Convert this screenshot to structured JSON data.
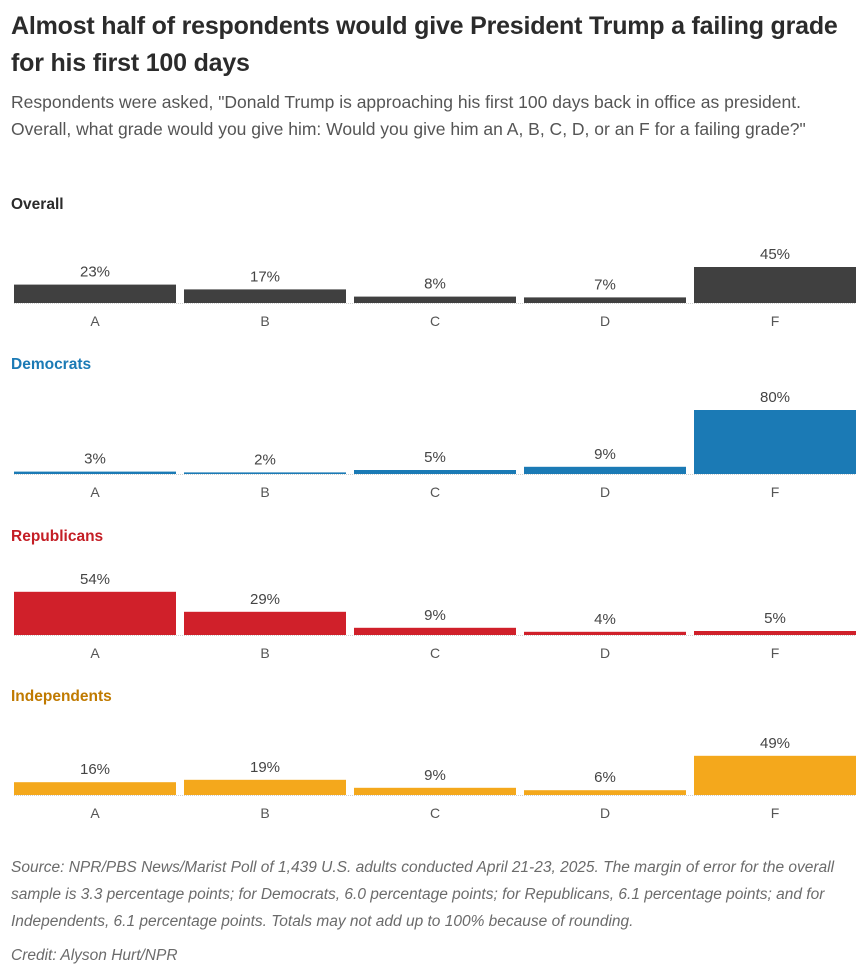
{
  "title": "Almost half of respondents would give President Trump a failing grade for his first 100 days",
  "subtitle": "Respondents were asked, \"Donald Trump is approaching his first 100 days back in office as president. Overall, what grade would you give him: Would you give him an A, B, C, D, or an F for a failing grade?\"",
  "chart_data": [
    {
      "type": "bar",
      "title": "Overall",
      "color": "#404040",
      "label_color": "#2b2b2b",
      "categories": [
        "A",
        "B",
        "C",
        "D",
        "F"
      ],
      "values": [
        23,
        17,
        8,
        7,
        45
      ],
      "value_labels": [
        "23%",
        "17%",
        "8%",
        "7%",
        "45%"
      ],
      "xlabel": "",
      "ylabel": "",
      "ylim": [
        0,
        100
      ],
      "grid": false
    },
    {
      "type": "bar",
      "title": "Democrats",
      "color": "#1b7ab5",
      "label_color": "#1b7ab5",
      "categories": [
        "A",
        "B",
        "C",
        "D",
        "F"
      ],
      "values": [
        3,
        2,
        5,
        9,
        80
      ],
      "value_labels": [
        "3%",
        "2%",
        "5%",
        "9%",
        "80%"
      ],
      "xlabel": "",
      "ylabel": "",
      "ylim": [
        0,
        100
      ],
      "grid": false
    },
    {
      "type": "bar",
      "title": "Republicans",
      "color": "#d0202a",
      "label_color": "#c41e25",
      "categories": [
        "A",
        "B",
        "C",
        "D",
        "F"
      ],
      "values": [
        54,
        29,
        9,
        4,
        5
      ],
      "value_labels": [
        "54%",
        "29%",
        "9%",
        "4%",
        "5%"
      ],
      "xlabel": "",
      "ylabel": "",
      "ylim": [
        0,
        100
      ],
      "grid": false
    },
    {
      "type": "bar",
      "title": "Independents",
      "color": "#f4a81c",
      "label_color": "#c07a00",
      "categories": [
        "A",
        "B",
        "C",
        "D",
        "F"
      ],
      "values": [
        16,
        19,
        9,
        6,
        49
      ],
      "value_labels": [
        "16%",
        "19%",
        "9%",
        "6%",
        "49%"
      ],
      "xlabel": "",
      "ylabel": "",
      "ylim": [
        0,
        100
      ],
      "grid": false
    }
  ],
  "footer": {
    "source": "Source: NPR/PBS News/Marist Poll of 1,439 U.S. adults conducted April 21-23, 2025. The margin of error for the overall sample is 3.3 percentage points; for Democrats, 6.0 percentage points; for Republicans, 6.1 percentage points; and for Independents, 6.1 percentage points. Totals may not add up to 100% because of rounding.",
    "credit": "Credit: Alyson Hurt/NPR"
  }
}
